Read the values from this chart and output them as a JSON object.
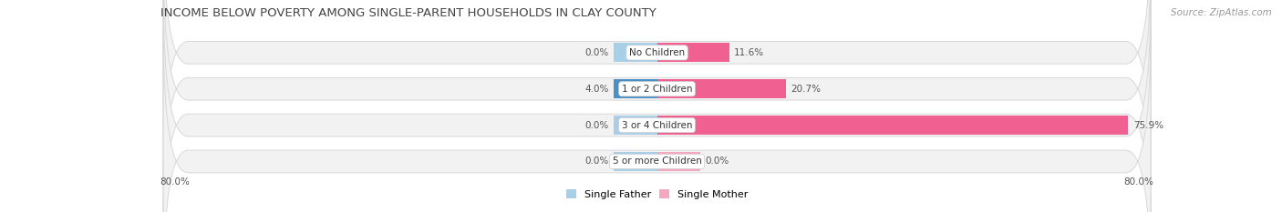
{
  "title": "INCOME BELOW POVERTY AMONG SINGLE-PARENT HOUSEHOLDS IN CLAY COUNTY",
  "source": "Source: ZipAtlas.com",
  "categories": [
    "No Children",
    "1 or 2 Children",
    "3 or 4 Children",
    "5 or more Children"
  ],
  "single_father": [
    0.0,
    4.0,
    0.0,
    0.0
  ],
  "single_mother": [
    11.6,
    20.7,
    75.9,
    0.0
  ],
  "father_color_light": "#a8cfe8",
  "father_color_dark": "#4a90c4",
  "mother_color_light": "#f4a8c0",
  "mother_color_dark": "#f06090",
  "xlim_left": -80.0,
  "xlim_right": 80.0,
  "stub_size": 7.0,
  "title_fontsize": 9.5,
  "source_fontsize": 7.5,
  "val_fontsize": 7.5,
  "cat_fontsize": 7.5,
  "legend_fontsize": 8
}
